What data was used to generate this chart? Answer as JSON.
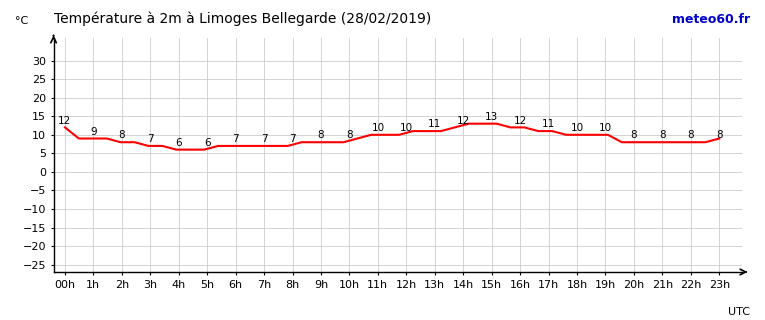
{
  "title": "Température à 2m à Limoges Bellegarde (28/02/2019)",
  "ylabel": "°C",
  "xlabel_right": "UTC",
  "watermark": "meteo60.fr",
  "hours": [
    0,
    1,
    2,
    3,
    4,
    5,
    6,
    7,
    8,
    9,
    10,
    11,
    12,
    13,
    14,
    15,
    16,
    17,
    18,
    19,
    20,
    21,
    22,
    23
  ],
  "hour_labels": [
    "00h",
    "1h",
    "2h",
    "3h",
    "4h",
    "5h",
    "6h",
    "7h",
    "8h",
    "9h",
    "10h",
    "11h",
    "12h",
    "13h",
    "14h",
    "15h",
    "16h",
    "17h",
    "18h",
    "19h",
    "20h",
    "21h",
    "22h",
    "23h"
  ],
  "temperatures": [
    12,
    9,
    9,
    9,
    8,
    8,
    7,
    7,
    6,
    6,
    6,
    7,
    7,
    7,
    7,
    7,
    7,
    8,
    8,
    8,
    8,
    9,
    10,
    10,
    10,
    11,
    11,
    11,
    12,
    13,
    13,
    13,
    12,
    12,
    11,
    11,
    10,
    10,
    10,
    10,
    8,
    8,
    8,
    8,
    8,
    8,
    8,
    9
  ],
  "line_color": "#ff0000",
  "line_width": 1.5,
  "grid_color": "#cccccc",
  "bg_color": "#ffffff",
  "ylim_min": -27,
  "ylim_max": 36,
  "yticks": [
    -25,
    -20,
    -15,
    -10,
    -5,
    0,
    5,
    10,
    15,
    20,
    25,
    30
  ],
  "title_fontsize": 10,
  "tick_fontsize": 8,
  "watermark_color": "#0000cc",
  "watermark_fontsize": 9,
  "annot_fontsize": 7.5
}
